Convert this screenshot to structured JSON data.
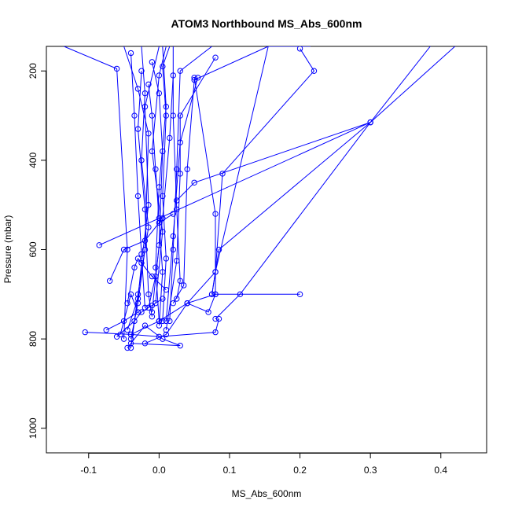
{
  "chart_data": {
    "type": "line",
    "title": "ATOM3 Northbound MS_Abs_600nm",
    "xlabel": "MS_Abs_600nm",
    "ylabel": "Pressure (mbar)",
    "xlim": [
      -0.16,
      0.465
    ],
    "ylim": [
      1055,
      145
    ],
    "y_inverted": true,
    "xticks": [
      -0.1,
      0.0,
      0.1,
      0.2,
      0.3,
      0.4
    ],
    "xtick_labels": [
      "-0.1",
      "0.0",
      "0.1",
      "0.2",
      "0.3",
      "0.4"
    ],
    "yticks": [
      200,
      400,
      600,
      800,
      1000
    ],
    "ytick_labels": [
      "200",
      "400",
      "600",
      "800",
      "1000"
    ],
    "grid": false,
    "series_color": "#0000ff",
    "marker": "open-circle",
    "series": [
      {
        "x": [
          -0.135,
          -0.06,
          -0.045,
          -0.05
        ],
        "y": [
          145,
          195,
          600,
          800
        ]
      },
      {
        "x": [
          -0.025,
          -0.02,
          -0.025,
          -0.015,
          -0.03,
          -0.04
        ],
        "y": [
          145,
          250,
          400,
          550,
          700,
          820
        ]
      },
      {
        "x": [
          -0.05,
          -0.03,
          -0.015,
          -0.02,
          -0.03,
          -0.04
        ],
        "y": [
          145,
          240,
          340,
          600,
          720,
          800
        ]
      },
      {
        "x": [
          0.0,
          -0.02,
          -0.015,
          -0.025,
          -0.03,
          -0.045
        ],
        "y": [
          145,
          280,
          500,
          630,
          710,
          780
        ]
      },
      {
        "x": [
          0.01,
          0.0,
          -0.01,
          0.005,
          -0.005
        ],
        "y": [
          145,
          210,
          380,
          560,
          720
        ]
      },
      {
        "x": [
          0.015,
          0.005,
          0.01,
          0.005,
          0.01,
          0.005
        ],
        "y": [
          145,
          190,
          300,
          480,
          620,
          760
        ]
      },
      {
        "x": [
          0.005,
          0.01,
          0.0,
          -0.005,
          0.0
        ],
        "y": [
          145,
          280,
          460,
          640,
          760
        ]
      },
      {
        "x": [
          0.02,
          0.02,
          0.025,
          0.03,
          0.025
        ],
        "y": [
          145,
          300,
          510,
          670,
          710
        ]
      },
      {
        "x": [
          0.075,
          0.03,
          0.025,
          0.02,
          0.015
        ],
        "y": [
          145,
          200,
          420,
          600,
          760
        ]
      },
      {
        "x": [
          0.08,
          0.03,
          0.03,
          0.025,
          0.01
        ],
        "y": [
          170,
          300,
          430,
          625,
          780
        ]
      },
      {
        "x": [
          0.155,
          0.05,
          0.04,
          0.035,
          0.02
        ],
        "y": [
          145,
          220,
          420,
          680,
          720
        ]
      },
      {
        "x": [
          0.215,
          0.155,
          0.08,
          0.04,
          0.01,
          -0.02
        ],
        "y": [
          145,
          145,
          650,
          720,
          790,
          810
        ]
      },
      {
        "x": [
          0.2,
          0.22,
          0.09,
          0.08,
          0.075
        ],
        "y": [
          150,
          200,
          430,
          650,
          700
        ]
      },
      {
        "x": [
          0.385,
          0.3,
          0.05,
          0.025
        ],
        "y": [
          145,
          315,
          450,
          490
        ]
      },
      {
        "x": [
          0.42,
          0.3,
          0.115,
          0.08
        ],
        "y": [
          145,
          315,
          700,
          755
        ]
      },
      {
        "x": [
          -0.085,
          0.0,
          0.3,
          0.085,
          0.075
        ],
        "y": [
          590,
          530,
          315,
          600,
          700
        ]
      },
      {
        "x": [
          -0.07,
          -0.05,
          -0.02,
          0.0,
          0.02
        ],
        "y": [
          670,
          600,
          580,
          540,
          520
        ]
      },
      {
        "x": [
          0.2,
          0.08,
          0.04,
          0.0,
          -0.04
        ],
        "y": [
          700,
          700,
          720,
          760,
          790
        ]
      },
      {
        "x": [
          -0.105,
          -0.04,
          0.0,
          0.08,
          0.085
        ],
        "y": [
          785,
          790,
          795,
          785,
          755
        ]
      },
      {
        "x": [
          -0.075,
          -0.05,
          -0.03,
          -0.04,
          -0.055
        ],
        "y": [
          780,
          760,
          740,
          700,
          790
        ]
      },
      {
        "x": [
          -0.04,
          0.03,
          0.005,
          -0.02,
          -0.045
        ],
        "y": [
          810,
          815,
          800,
          770,
          820
        ]
      },
      {
        "x": [
          -0.06,
          -0.035,
          -0.025,
          -0.01,
          0.005
        ],
        "y": [
          795,
          760,
          740,
          725,
          710
        ]
      },
      {
        "x": [
          -0.045,
          -0.035,
          -0.03,
          -0.01,
          0.01
        ],
        "y": [
          720,
          640,
          620,
          660,
          690
        ]
      },
      {
        "x": [
          0.04,
          0.07,
          0.08,
          0.08,
          0.05
        ],
        "y": [
          720,
          740,
          700,
          520,
          215
        ]
      },
      {
        "x": [
          0.055,
          0.03,
          0.02,
          0.01
        ],
        "y": [
          215,
          360,
          570,
          760
        ]
      },
      {
        "x": [
          -0.015,
          -0.01,
          -0.005,
          0.005,
          0.0
        ],
        "y": [
          230,
          300,
          420,
          650,
          770
        ]
      },
      {
        "x": [
          -0.025,
          -0.03,
          -0.02,
          -0.015,
          -0.01
        ],
        "y": [
          200,
          330,
          510,
          700,
          750
        ]
      },
      {
        "x": [
          -0.04,
          -0.035,
          -0.03,
          -0.025,
          -0.02
        ],
        "y": [
          160,
          300,
          480,
          610,
          730
        ]
      },
      {
        "x": [
          -0.01,
          0.0,
          0.005,
          0.0,
          -0.01
        ],
        "y": [
          180,
          250,
          380,
          590,
          740
        ]
      },
      {
        "x": [
          0.02,
          0.015,
          0.005,
          -0.005,
          -0.015
        ],
        "y": [
          210,
          350,
          530,
          660,
          730
        ]
      }
    ]
  }
}
